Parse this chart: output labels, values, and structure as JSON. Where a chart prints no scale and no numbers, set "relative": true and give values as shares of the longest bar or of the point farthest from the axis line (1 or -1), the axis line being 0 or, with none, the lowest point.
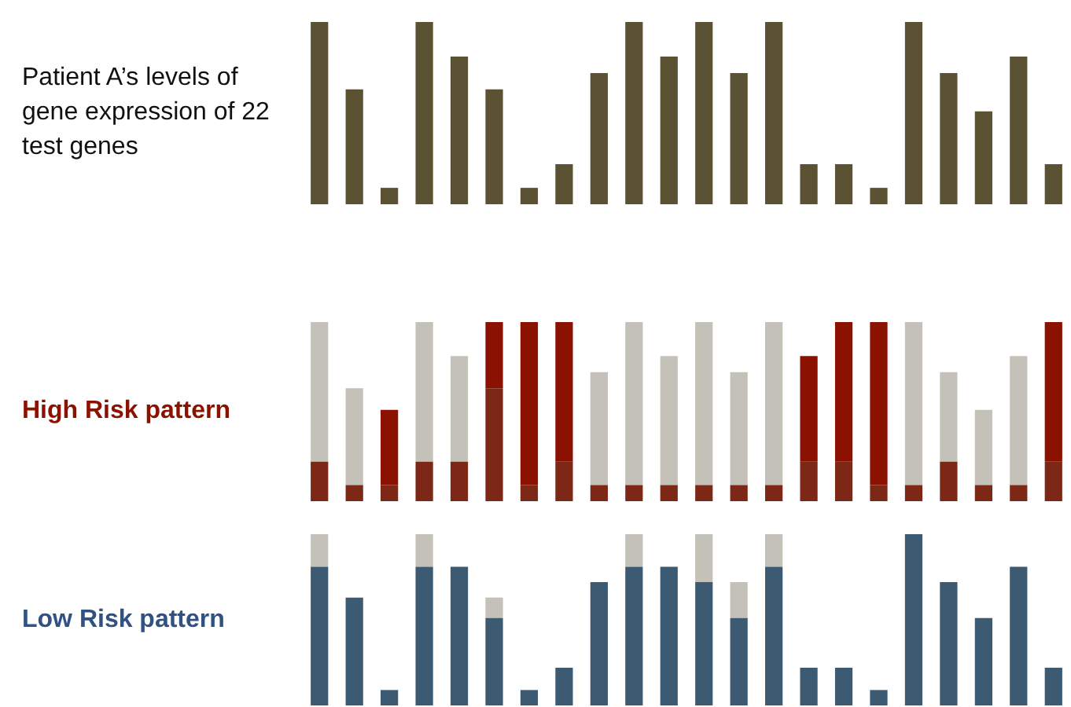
{
  "chart_data": [
    {
      "type": "bar",
      "title": "Patient A’s levels of gene expression of 22 test genes",
      "relative": true,
      "categories": [
        null,
        null,
        null,
        null,
        null,
        null,
        null,
        null,
        null,
        null,
        null,
        null,
        null,
        null,
        null,
        null,
        null,
        null,
        null,
        null,
        null,
        null
      ],
      "series": [
        {
          "color": "#5b5233",
          "values": [
            1,
            0.63,
            0.09,
            1,
            0.81,
            0.63,
            0.09,
            0.22,
            0.72,
            1,
            0.81,
            1,
            0.72,
            1,
            0.22,
            0.22,
            0.09,
            1,
            0.72,
            0.51,
            0.81,
            0.22
          ]
        }
      ]
    },
    {
      "type": "bar",
      "title": "High Risk pattern",
      "relative": true,
      "stacked": true,
      "categories": [
        null,
        null,
        null,
        null,
        null,
        null,
        null,
        null,
        null,
        null,
        null,
        null,
        null,
        null,
        null,
        null,
        null,
        null,
        null,
        null,
        null,
        null
      ],
      "series": [
        {
          "color": "#7d2817",
          "values": [
            0.22,
            0.09,
            0.09,
            0.22,
            0.22,
            0.63,
            0.09,
            0.22,
            0.09,
            0.09,
            0.09,
            0.09,
            0.09,
            0.09,
            0.22,
            0.22,
            0.09,
            0.09,
            0.22,
            0.09,
            0.09,
            0.22
          ]
        },
        {
          "color": "#c4c2b8",
          "values": [
            0.78,
            0.54,
            null,
            0.78,
            0.59,
            null,
            null,
            null,
            0.63,
            0.91,
            0.72,
            0.91,
            0.63,
            0.91,
            null,
            null,
            null,
            0.91,
            0.5,
            0.42,
            0.72,
            null
          ]
        },
        {
          "color": "#8b1100",
          "values": [
            null,
            null,
            0.42,
            null,
            null,
            0.37,
            0.91,
            0.78,
            null,
            null,
            null,
            null,
            null,
            null,
            0.59,
            0.78,
            0.91,
            null,
            null,
            null,
            null,
            0.78
          ]
        }
      ]
    },
    {
      "type": "bar",
      "title": "Low Risk pattern",
      "relative": true,
      "stacked": true,
      "categories": [
        null,
        null,
        null,
        null,
        null,
        null,
        null,
        null,
        null,
        null,
        null,
        null,
        null,
        null,
        null,
        null,
        null,
        null,
        null,
        null,
        null,
        null
      ],
      "series": [
        {
          "color": "#3d5a73",
          "values": [
            0.81,
            0.63,
            0.09,
            0.81,
            0.81,
            0.51,
            0.09,
            0.22,
            0.72,
            0.81,
            0.81,
            0.72,
            0.51,
            0.81,
            0.22,
            0.22,
            0.09,
            1,
            0.72,
            0.51,
            0.81,
            0.22
          ]
        },
        {
          "color": "#c4c2b8",
          "values": [
            0.19,
            null,
            null,
            0.19,
            null,
            0.12,
            null,
            null,
            null,
            0.19,
            null,
            0.28,
            0.21,
            0.19,
            null,
            null,
            null,
            null,
            null,
            null,
            null,
            null
          ]
        }
      ]
    }
  ]
}
